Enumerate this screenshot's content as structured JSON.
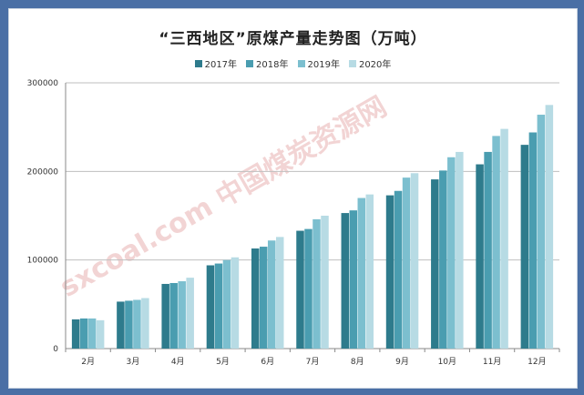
{
  "title": "“三西地区”原煤产量走势图（万吨）",
  "colors": {
    "background_border": "#4a6fa5",
    "series": [
      "#2e7b8c",
      "#4a9db0",
      "#7cbfcf",
      "#b7dbe4"
    ],
    "gridline": "#bfbfbf",
    "watermark": "#e8b0b0"
  },
  "watermark_text": "sxcoal.com 中国煤炭资源网",
  "chart_data": {
    "type": "bar",
    "title": "“三西地区”原煤产量走势图（万吨）",
    "xlabel": "",
    "ylabel": "",
    "ylim": [
      0,
      300000
    ],
    "yticks": [
      0,
      100000,
      200000,
      300000
    ],
    "ytick_labels": [
      "0",
      "100000",
      "200000",
      "300000"
    ],
    "grid": true,
    "legend_position": "top",
    "categories": [
      "2月",
      "3月",
      "4月",
      "5月",
      "6月",
      "7月",
      "8月",
      "9月",
      "10月",
      "11月",
      "12月"
    ],
    "series": [
      {
        "name": "2017年",
        "values": [
          33000,
          53000,
          73000,
          94000,
          113000,
          133000,
          153000,
          173000,
          191000,
          208000,
          230000
        ]
      },
      {
        "name": "2018年",
        "values": [
          34000,
          54000,
          74000,
          96000,
          115000,
          135000,
          156000,
          178000,
          201000,
          222000,
          244000
        ]
      },
      {
        "name": "2019年",
        "values": [
          34000,
          55000,
          76000,
          100000,
          122000,
          146000,
          170000,
          193000,
          216000,
          240000,
          264000
        ]
      },
      {
        "name": "2020年",
        "values": [
          32000,
          57000,
          80000,
          103000,
          126000,
          150000,
          174000,
          198000,
          222000,
          248000,
          275000
        ]
      }
    ]
  }
}
